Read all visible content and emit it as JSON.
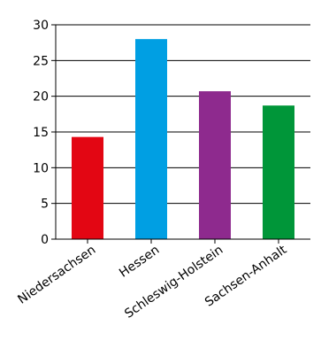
{
  "chart_data": {
    "type": "bar",
    "title": "",
    "xlabel": "",
    "ylabel": "",
    "categories": [
      "Niedersachsen",
      "Hessen",
      "Schleswig-Holstein",
      "Sachsen-Anhalt"
    ],
    "values": [
      14.3,
      28.0,
      20.7,
      18.7
    ],
    "colors": [
      "#e30613",
      "#009fe3",
      "#8e2a8e",
      "#009639"
    ],
    "ylim": [
      0,
      30
    ],
    "yticks": [
      0,
      5,
      10,
      15,
      20,
      25,
      30
    ],
    "grid": true,
    "legend": "none"
  }
}
